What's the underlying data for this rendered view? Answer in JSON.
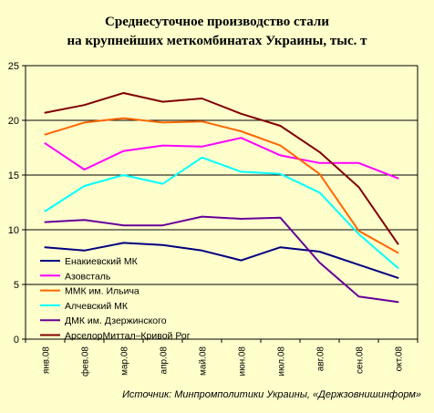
{
  "chart_data": {
    "type": "line",
    "title": "Среднесуточное производство стали",
    "subtitle": "на крупнейших меткомбинатах Украины, тыс. т",
    "source": "Источник: Минпромполитики Украины, «Держзовнишинформ»",
    "xlabel": "",
    "ylabel": "",
    "ylim": [
      0,
      25
    ],
    "yticks": [
      "0",
      "5",
      "10",
      "15",
      "20",
      "25"
    ],
    "grid": true,
    "legend_position": "bottom-left",
    "x": [
      "янв.08",
      "фев.08",
      "мар.08",
      "апр.08",
      "май.08",
      "июн.08",
      "июл.08",
      "авг.08",
      "сен.08",
      "окт.08"
    ],
    "series": [
      {
        "name": "Енакиевский МК",
        "color": "#000080",
        "values": [
          8.4,
          8.1,
          8.8,
          8.6,
          8.1,
          7.2,
          8.4,
          8.0,
          6.8,
          5.6
        ]
      },
      {
        "name": "Азовсталь",
        "color": "#ff00ff",
        "values": [
          17.9,
          15.5,
          17.2,
          17.7,
          17.6,
          18.4,
          16.8,
          16.1,
          16.1,
          14.7
        ]
      },
      {
        "name": "ММК им. Ильича",
        "color": "#ff6600",
        "values": [
          18.7,
          19.8,
          20.2,
          19.8,
          19.9,
          19.0,
          17.7,
          15.1,
          9.9,
          7.9
        ]
      },
      {
        "name": "Алчевский МК",
        "color": "#00ffff",
        "values": [
          11.7,
          14.0,
          15.0,
          14.2,
          16.6,
          15.3,
          15.1,
          13.4,
          9.6,
          6.5
        ]
      },
      {
        "name": "ДМК им. Дзержинского",
        "color": "#660099",
        "values": [
          10.7,
          10.9,
          10.4,
          10.4,
          11.2,
          11.0,
          11.1,
          7.0,
          3.9,
          3.4
        ]
      },
      {
        "name": "АрселорМиттал–Кривой Рог",
        "color": "#800000",
        "values": [
          20.7,
          21.4,
          22.5,
          21.7,
          22.0,
          20.6,
          19.5,
          17.1,
          13.9,
          8.7
        ]
      }
    ]
  }
}
